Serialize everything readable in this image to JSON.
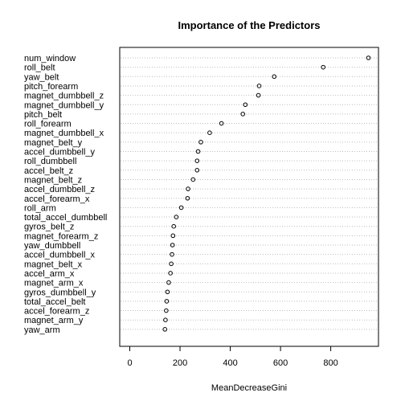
{
  "chart_data": {
    "type": "dotchart",
    "title": "Importance of the Predictors",
    "xlabel": "MeanDecreaseGini",
    "ylabel": "",
    "xlim": [
      -40,
      990
    ],
    "xticks": [
      0,
      200,
      400,
      600,
      800
    ],
    "grid": "dotted horizontal lines per category",
    "marker": "open circle",
    "categories": [
      "num_window",
      "roll_belt",
      "yaw_belt",
      "pitch_forearm",
      "magnet_dumbbell_z",
      "magnet_dumbbell_y",
      "pitch_belt",
      "roll_forearm",
      "magnet_dumbbell_x",
      "magnet_belt_y",
      "accel_dumbbell_y",
      "roll_dumbbell",
      "accel_belt_z",
      "magnet_belt_z",
      "accel_dumbbell_z",
      "accel_forearm_x",
      "roll_arm",
      "total_accel_dumbbell",
      "gyros_belt_z",
      "magnet_forearm_z",
      "yaw_dumbbell",
      "accel_dumbbell_x",
      "magnet_belt_x",
      "accel_arm_x",
      "magnet_arm_x",
      "gyros_dumbbell_y",
      "total_accel_belt",
      "accel_forearm_z",
      "magnet_arm_y",
      "yaw_arm"
    ],
    "values": [
      950,
      770,
      575,
      515,
      512,
      460,
      450,
      365,
      318,
      283,
      272,
      268,
      268,
      252,
      232,
      230,
      205,
      185,
      175,
      172,
      170,
      168,
      165,
      162,
      155,
      150,
      147,
      145,
      142,
      140
    ]
  },
  "colors": {
    "axis": "#000000",
    "grid": "#bebebe",
    "marker": "#000000",
    "background": "#ffffff"
  }
}
